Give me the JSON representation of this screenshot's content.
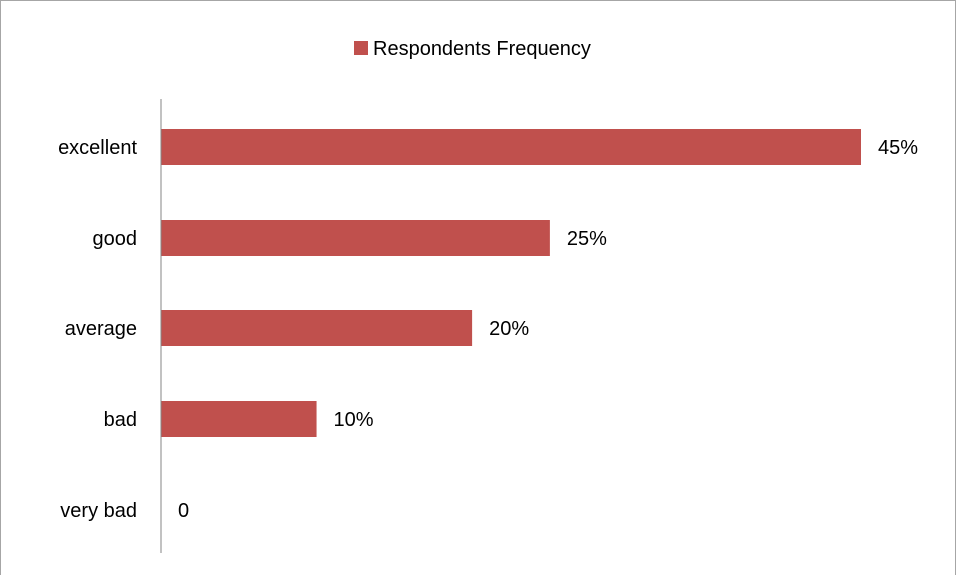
{
  "chart_data": {
    "type": "bar",
    "orientation": "horizontal",
    "categories": [
      "excellent",
      "good",
      "average",
      "bad",
      "very bad"
    ],
    "series": [
      {
        "name": "Respondents Frequency",
        "values": [
          45,
          25,
          20,
          10,
          0
        ],
        "color": "#c0504d"
      }
    ],
    "data_labels": [
      "45%",
      "25%",
      "20%",
      "10%",
      "0"
    ],
    "xlim": [
      0,
      45
    ],
    "legend_position": "top",
    "grid": false,
    "title": "",
    "xlabel": "",
    "ylabel": ""
  }
}
